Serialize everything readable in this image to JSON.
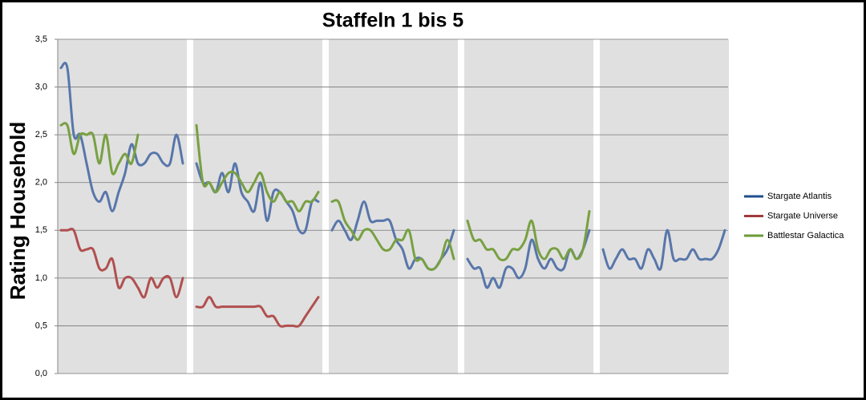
{
  "chart_data": {
    "type": "line",
    "title": "Staffeln 1 bis 5",
    "y_label": "Rating Household",
    "categories": [
      null,
      null,
      null,
      null,
      null,
      null,
      null,
      null,
      null,
      null,
      null,
      null,
      null,
      null,
      null,
      null,
      null,
      null,
      null,
      null,
      null,
      null,
      null,
      null,
      null,
      null,
      null,
      null,
      null,
      null,
      null,
      null,
      null,
      null,
      null,
      null,
      null,
      null,
      null,
      null,
      null,
      null,
      null,
      null,
      null,
      null,
      null,
      null,
      null,
      null,
      null,
      null,
      null,
      null,
      null,
      null,
      null,
      null,
      null,
      null,
      null,
      null,
      null,
      null,
      null,
      null,
      null,
      null,
      null,
      null,
      null,
      null,
      null,
      null,
      null,
      null,
      null,
      null,
      null,
      null,
      null,
      null,
      null,
      null,
      null,
      null,
      null,
      null,
      null,
      null,
      null,
      null,
      null,
      null,
      null,
      null,
      null,
      null,
      null,
      null
    ],
    "series": [
      {
        "name": "Stargate Atlantis",
        "color": "#5876aa",
        "legend_color": "#1f4e8c",
        "values": [
          3.2,
          3.2,
          2.5,
          2.5,
          2.2,
          1.9,
          1.8,
          1.9,
          1.7,
          1.9,
          2.1,
          2.4,
          2.2,
          2.2,
          2.3,
          2.3,
          2.2,
          2.2,
          2.5,
          2.2,
          2.2,
          2.0,
          2.0,
          1.9,
          2.1,
          1.9,
          2.2,
          1.9,
          1.8,
          1.7,
          2.0,
          1.6,
          1.9,
          1.9,
          1.8,
          1.7,
          1.5,
          1.5,
          1.8,
          1.8,
          1.5,
          1.6,
          1.5,
          1.4,
          1.6,
          1.8,
          1.6,
          1.6,
          1.6,
          1.6,
          1.4,
          1.3,
          1.1,
          1.2,
          1.2,
          1.1,
          1.1,
          1.2,
          1.3,
          1.5,
          1.2,
          1.1,
          1.1,
          0.9,
          1.0,
          0.9,
          1.1,
          1.1,
          1.0,
          1.1,
          1.4,
          1.2,
          1.1,
          1.2,
          1.1,
          1.1,
          1.3,
          1.2,
          1.3,
          1.5,
          1.3,
          1.1,
          1.2,
          1.3,
          1.2,
          1.2,
          1.1,
          1.3,
          1.2,
          1.1,
          1.5,
          1.2,
          1.2,
          1.2,
          1.3,
          1.2,
          1.2,
          1.2,
          1.3,
          1.5
        ]
      },
      {
        "name": "Stargate Universe",
        "color": "#b0504f",
        "legend_color": "#a03b3a",
        "values": [
          1.5,
          1.5,
          1.5,
          1.3,
          1.3,
          1.3,
          1.1,
          1.1,
          1.2,
          0.9,
          1.0,
          1.0,
          0.9,
          0.8,
          1.0,
          0.9,
          1.0,
          1.0,
          0.8,
          1.0,
          0.7,
          0.7,
          0.8,
          0.7,
          0.7,
          0.7,
          0.7,
          0.7,
          0.7,
          0.7,
          0.7,
          0.6,
          0.6,
          0.5,
          0.5,
          0.5,
          0.5,
          0.6,
          0.7,
          0.8,
          null,
          null,
          null,
          null,
          null,
          null,
          null,
          null,
          null,
          null,
          null,
          null,
          null,
          null,
          null,
          null,
          null,
          null,
          null,
          null,
          null,
          null,
          null,
          null,
          null,
          null,
          null,
          null,
          null,
          null,
          null,
          null,
          null,
          null,
          null,
          null,
          null,
          null,
          null,
          null,
          null,
          null,
          null,
          null,
          null,
          null,
          null,
          null,
          null,
          null,
          null,
          null,
          null,
          null,
          null,
          null,
          null,
          null,
          null,
          null
        ]
      },
      {
        "name": "Battlestar Galactica",
        "color": "#78a042",
        "legend_color": "#6a9a36",
        "values": [
          2.6,
          2.6,
          2.3,
          2.5,
          2.5,
          2.5,
          2.2,
          2.5,
          2.1,
          2.2,
          2.3,
          2.2,
          2.5,
          null,
          null,
          null,
          null,
          null,
          null,
          null,
          2.6,
          2.0,
          2.0,
          1.9,
          2.0,
          2.1,
          2.1,
          2.0,
          1.9,
          2.0,
          2.1,
          1.9,
          1.8,
          1.9,
          1.8,
          1.8,
          1.7,
          1.8,
          1.8,
          1.9,
          1.8,
          1.8,
          1.6,
          1.5,
          1.4,
          1.5,
          1.5,
          1.4,
          1.3,
          1.3,
          1.4,
          1.4,
          1.5,
          1.2,
          1.2,
          1.1,
          1.1,
          1.2,
          1.4,
          1.2,
          1.6,
          1.4,
          1.4,
          1.3,
          1.3,
          1.2,
          1.2,
          1.3,
          1.3,
          1.4,
          1.6,
          1.3,
          1.2,
          1.3,
          1.3,
          1.2,
          1.3,
          1.2,
          1.3,
          1.7,
          null,
          null,
          null,
          null,
          null,
          null,
          null,
          null,
          null,
          null,
          null,
          null,
          null,
          null,
          null,
          null,
          null,
          null,
          null,
          null
        ]
      }
    ],
    "ylim": [
      0,
      3.5
    ],
    "yticks": [
      {
        "value": 0,
        "label": "0,0"
      },
      {
        "value": 0.5,
        "label": "0,5"
      },
      {
        "value": 1,
        "label": "1,0"
      },
      {
        "value": 1.5,
        "label": "1,5"
      },
      {
        "value": 2,
        "label": "2,0"
      },
      {
        "value": 2.5,
        "label": "2,5"
      },
      {
        "value": 3,
        "label": "3,0"
      },
      {
        "value": 3.5,
        "label": "3,5"
      }
    ],
    "grid": true,
    "legend": "right"
  }
}
